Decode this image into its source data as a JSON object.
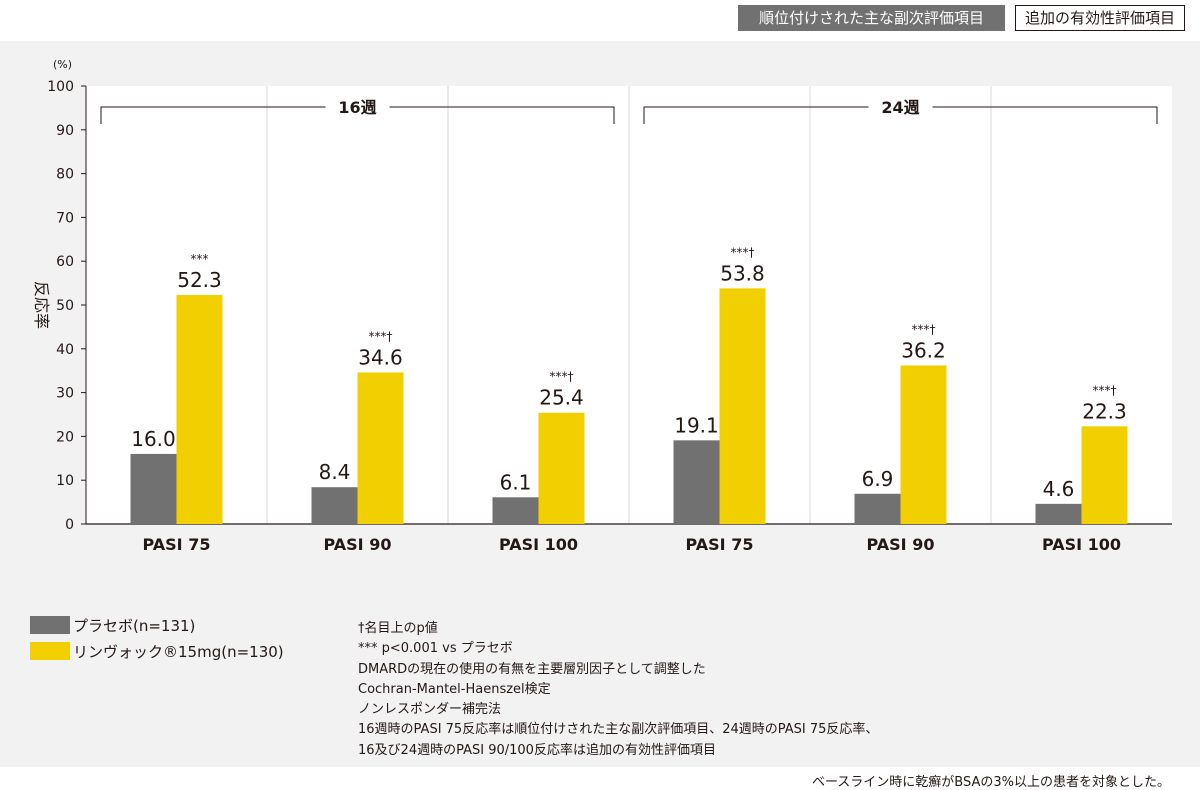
{
  "header": {
    "primary_tab": "順位付けされた主な副次評価項目",
    "secondary_tab": "追加の有効性評価項目"
  },
  "colors": {
    "placebo": "#727171",
    "rinvoq": "#f2cf00",
    "panel_bg": "#f2f2f2"
  },
  "chart_data": {
    "type": "bar",
    "title": "",
    "ylabel": "反応率",
    "yunit": "(%)",
    "ylim": [
      0,
      100
    ],
    "yticks": [
      0,
      10,
      20,
      30,
      40,
      50,
      60,
      70,
      80,
      90,
      100
    ],
    "grid": false,
    "groups": [
      {
        "label": "16週",
        "categories": [
          0,
          1,
          2
        ]
      },
      {
        "label": "24週",
        "categories": [
          3,
          4,
          5
        ]
      }
    ],
    "categories": [
      "PASI 75",
      "PASI 90",
      "PASI 100",
      "PASI 75",
      "PASI 90",
      "PASI 100"
    ],
    "series": [
      {
        "name": "プラセボ(n=131)",
        "values": [
          16.0,
          8.4,
          6.1,
          19.1,
          6.9,
          4.6
        ]
      },
      {
        "name": "リンヴォック®15mg(n=130)",
        "values": [
          52.3,
          34.6,
          25.4,
          53.8,
          36.2,
          22.3
        ]
      }
    ],
    "significance": [
      "***",
      "***†",
      "***†",
      "***†",
      "***†",
      "***†"
    ],
    "legend_position": "bottom-left"
  },
  "legend": {
    "placebo": "プラセボ(n=131)",
    "rinvoq": "リンヴォック®15mg(n=130)"
  },
  "notes": [
    "†名目上のp値",
    "*** p<0.001 vs プラセボ",
    "DMARDの現在の使用の有無を主要層別因子として調整した",
    "Cochran-Mantel-Haenszel検定",
    "ノンレスポンダー補完法",
    "16週時のPASI 75反応率は順位付けされた主な副次評価項目、24週時のPASI 75反応率、",
    "16及び24週時のPASI 90/100反応率は追加の有効性評価項目"
  ],
  "footnote": "ベースライン時に乾癬がBSAの3%以上の患者を対象とした。"
}
